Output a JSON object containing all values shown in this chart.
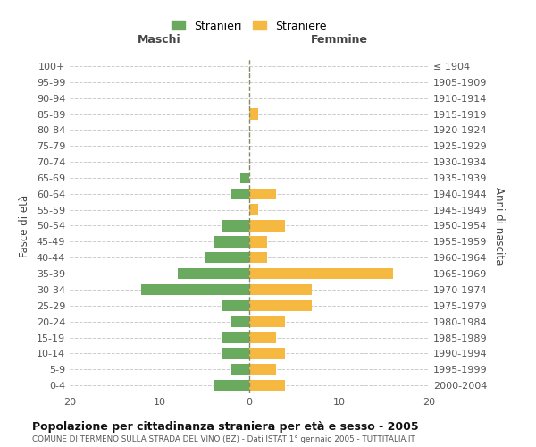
{
  "age_groups": [
    "0-4",
    "5-9",
    "10-14",
    "15-19",
    "20-24",
    "25-29",
    "30-34",
    "35-39",
    "40-44",
    "45-49",
    "50-54",
    "55-59",
    "60-64",
    "65-69",
    "70-74",
    "75-79",
    "80-84",
    "85-89",
    "90-94",
    "95-99",
    "100+"
  ],
  "birth_years": [
    "2000-2004",
    "1995-1999",
    "1990-1994",
    "1985-1989",
    "1980-1984",
    "1975-1979",
    "1970-1974",
    "1965-1969",
    "1960-1964",
    "1955-1959",
    "1950-1954",
    "1945-1949",
    "1940-1944",
    "1935-1939",
    "1930-1934",
    "1925-1929",
    "1920-1924",
    "1915-1919",
    "1910-1914",
    "1905-1909",
    "≤ 1904"
  ],
  "maschi": [
    4,
    2,
    3,
    3,
    2,
    3,
    12,
    8,
    5,
    4,
    3,
    0,
    2,
    1,
    0,
    0,
    0,
    0,
    0,
    0,
    0
  ],
  "femmine": [
    4,
    3,
    4,
    3,
    4,
    7,
    7,
    16,
    2,
    2,
    4,
    1,
    3,
    0,
    0,
    0,
    0,
    1,
    0,
    0,
    0
  ],
  "maschi_color": "#6aaa5e",
  "femmine_color": "#f5b942",
  "title": "Popolazione per cittadinanza straniera per età e sesso - 2005",
  "subtitle": "COMUNE DI TERMENO SULLA STRADA DEL VINO (BZ) - Dati ISTAT 1° gennaio 2005 - TUTTITALIA.IT",
  "xlabel_left": "Maschi",
  "xlabel_right": "Femmine",
  "ylabel_left": "Fasce di età",
  "ylabel_right": "Anni di nascita",
  "legend_maschi": "Stranieri",
  "legend_femmine": "Straniere",
  "xlim": 20,
  "background_color": "#ffffff",
  "grid_color": "#cccccc"
}
